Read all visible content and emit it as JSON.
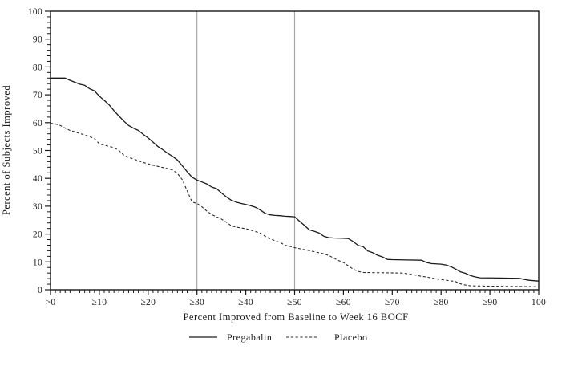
{
  "chart_data": {
    "type": "line",
    "title": "",
    "xlabel": "Percent Improved from Baseline to Week 16 BOCF",
    "ylabel": "Percent of Subjects Improved",
    "xlim": [
      0,
      100
    ],
    "ylim": [
      0,
      100
    ],
    "x_ticks": [
      0,
      10,
      20,
      30,
      40,
      50,
      60,
      70,
      80,
      90,
      100
    ],
    "x_tick_labels": [
      ">0",
      "≥10",
      "≥20",
      "≥30",
      "≥40",
      "≥50",
      "≥60",
      "≥70",
      "≥80",
      "≥90",
      "100"
    ],
    "y_ticks": [
      0,
      10,
      20,
      30,
      40,
      50,
      60,
      70,
      80,
      90,
      100
    ],
    "y_tick_labels": [
      "0",
      "10",
      "20",
      "30",
      "40",
      "50",
      "60",
      "70",
      "80",
      "90",
      "100"
    ],
    "x_minor_step": 1,
    "y_minor_step": 2,
    "grid": "off",
    "reference_lines_x": [
      30,
      50
    ],
    "reference_line_color": "#a8a8a8",
    "frame_color": "#1a1a1a",
    "legend_position": "bottom",
    "series": [
      {
        "name": "Pregabalin",
        "style": "solid",
        "color": "#1a1a1a",
        "points": [
          [
            0,
            76
          ],
          [
            3,
            76
          ],
          [
            4,
            75.2
          ],
          [
            5,
            74.5
          ],
          [
            6,
            73.8
          ],
          [
            7,
            73.4
          ],
          [
            8,
            72.2
          ],
          [
            9,
            71.4
          ],
          [
            10,
            69.5
          ],
          [
            11,
            68
          ],
          [
            12,
            66.4
          ],
          [
            13,
            64.3
          ],
          [
            14,
            62.4
          ],
          [
            15,
            60.6
          ],
          [
            16,
            59
          ],
          [
            17,
            58
          ],
          [
            18,
            57.2
          ],
          [
            19,
            55.8
          ],
          [
            20,
            54.5
          ],
          [
            21,
            53
          ],
          [
            22,
            51.4
          ],
          [
            23,
            50.3
          ],
          [
            24,
            49
          ],
          [
            25,
            47.9
          ],
          [
            26,
            46.6
          ],
          [
            27,
            44.5
          ],
          [
            28,
            42.4
          ],
          [
            29,
            40.4
          ],
          [
            30,
            39.4
          ],
          [
            31,
            38.7
          ],
          [
            32,
            38
          ],
          [
            33,
            36.9
          ],
          [
            34,
            36.3
          ],
          [
            35,
            34.8
          ],
          [
            36,
            33.4
          ],
          [
            37,
            32.2
          ],
          [
            38,
            31.5
          ],
          [
            39,
            31
          ],
          [
            40,
            30.6
          ],
          [
            41,
            30.2
          ],
          [
            42,
            29.6
          ],
          [
            43,
            28.6
          ],
          [
            44,
            27.4
          ],
          [
            45,
            26.9
          ],
          [
            46,
            26.7
          ],
          [
            47,
            26.6
          ],
          [
            48,
            26.4
          ],
          [
            49,
            26.3
          ],
          [
            50,
            26.2
          ],
          [
            51,
            24.6
          ],
          [
            52,
            23.1
          ],
          [
            53,
            21.5
          ],
          [
            54,
            21
          ],
          [
            55,
            20.4
          ],
          [
            56,
            19.2
          ],
          [
            57,
            18.7
          ],
          [
            58,
            18.6
          ],
          [
            60,
            18.5
          ],
          [
            61,
            18.4
          ],
          [
            62,
            17.3
          ],
          [
            63,
            15.9
          ],
          [
            64,
            15.5
          ],
          [
            65,
            13.9
          ],
          [
            66,
            13.3
          ],
          [
            67,
            12.4
          ],
          [
            68,
            11.8
          ],
          [
            69,
            10.9
          ],
          [
            70,
            10.8
          ],
          [
            73,
            10.7
          ],
          [
            76,
            10.6
          ],
          [
            77,
            9.8
          ],
          [
            78,
            9.4
          ],
          [
            80,
            9.2
          ],
          [
            81,
            8.9
          ],
          [
            82,
            8.3
          ],
          [
            83,
            7.4
          ],
          [
            84,
            6.4
          ],
          [
            85,
            5.9
          ],
          [
            86,
            5.1
          ],
          [
            87,
            4.6
          ],
          [
            88,
            4.3
          ],
          [
            92,
            4.2
          ],
          [
            96,
            4.1
          ],
          [
            98,
            3.4
          ],
          [
            100,
            3.1
          ]
        ]
      },
      {
        "name": "Placebo",
        "style": "dashed",
        "color": "#2a2a2a",
        "points": [
          [
            0,
            59.8
          ],
          [
            1,
            59.5
          ],
          [
            2,
            59
          ],
          [
            3,
            58
          ],
          [
            4,
            57.2
          ],
          [
            5,
            56.7
          ],
          [
            6,
            56.1
          ],
          [
            7,
            55.6
          ],
          [
            8,
            55
          ],
          [
            9,
            54.3
          ],
          [
            10,
            52.4
          ],
          [
            11,
            51.9
          ],
          [
            12,
            51.5
          ],
          [
            13,
            51
          ],
          [
            14,
            50
          ],
          [
            15,
            48.4
          ],
          [
            16,
            47.5
          ],
          [
            17,
            47
          ],
          [
            18,
            46.3
          ],
          [
            19,
            45.7
          ],
          [
            20,
            45.2
          ],
          [
            21,
            44.7
          ],
          [
            22,
            44.3
          ],
          [
            23,
            43.9
          ],
          [
            24,
            43.5
          ],
          [
            25,
            43
          ],
          [
            26,
            41.8
          ],
          [
            27,
            39.5
          ],
          [
            28,
            35.5
          ],
          [
            29,
            31.5
          ],
          [
            30,
            31
          ],
          [
            31,
            29.8
          ],
          [
            32,
            28.3
          ],
          [
            33,
            27
          ],
          [
            34,
            26.2
          ],
          [
            35,
            25.4
          ],
          [
            36,
            24.3
          ],
          [
            37,
            23
          ],
          [
            38,
            22.5
          ],
          [
            39,
            22.2
          ],
          [
            40,
            21.9
          ],
          [
            41,
            21.4
          ],
          [
            42,
            20.9
          ],
          [
            43,
            20.3
          ],
          [
            44,
            19.2
          ],
          [
            45,
            18.3
          ],
          [
            46,
            17.6
          ],
          [
            47,
            17
          ],
          [
            48,
            16
          ],
          [
            49,
            15.6
          ],
          [
            50,
            15.1
          ],
          [
            52,
            14.4
          ],
          [
            54,
            13.7
          ],
          [
            55,
            13.3
          ],
          [
            56,
            12.9
          ],
          [
            57,
            12.3
          ],
          [
            58,
            11.4
          ],
          [
            59,
            10.5
          ],
          [
            60,
            9.8
          ],
          [
            61,
            8.6
          ],
          [
            62,
            7.4
          ],
          [
            63,
            6.6
          ],
          [
            64,
            6.2
          ],
          [
            68,
            6.1
          ],
          [
            72,
            6
          ],
          [
            73,
            5.8
          ],
          [
            74,
            5.5
          ],
          [
            75,
            5.2
          ],
          [
            76,
            4.8
          ],
          [
            77,
            4.6
          ],
          [
            78,
            4.2
          ],
          [
            80,
            3.7
          ],
          [
            81,
            3.4
          ],
          [
            82,
            3.2
          ],
          [
            83,
            2.9
          ],
          [
            84,
            2.1
          ],
          [
            85,
            1.7
          ],
          [
            86,
            1.4
          ],
          [
            90,
            1.3
          ],
          [
            94,
            1.2
          ],
          [
            100,
            1.1
          ]
        ]
      }
    ]
  }
}
